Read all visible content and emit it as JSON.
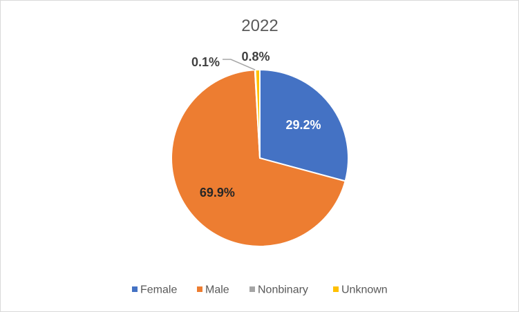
{
  "chart_data": {
    "type": "pie",
    "title": "2022",
    "categories": [
      "Female",
      "Male",
      "Nonbinary",
      "Unknown"
    ],
    "values": [
      29.2,
      69.9,
      0.1,
      0.8
    ],
    "labels": [
      "29.2%",
      "69.9%",
      "0.1%",
      "0.8%"
    ],
    "colors": [
      "#4472C4",
      "#ED7D31",
      "#A5A5A5",
      "#FFC000"
    ],
    "label_colors": [
      "#ffffff",
      "#262626",
      "#404040",
      "#404040"
    ],
    "legend_position": "bottom",
    "start_angle_deg": 0,
    "direction": "clockwise"
  }
}
